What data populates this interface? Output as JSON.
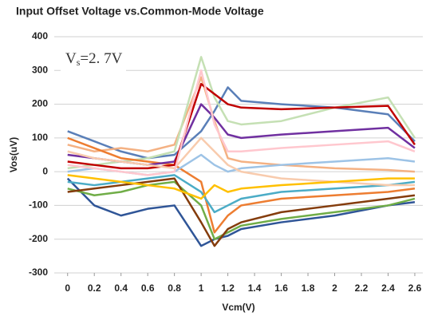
{
  "chart_data": {
    "type": "line",
    "title": "Input Offset Voltage vs.Common-Mode Voltage",
    "x_label": "Vcm(V)",
    "y_label": "Vos(uV)",
    "annotation": {
      "main": "V",
      "sub": "s",
      "rest": "=2. 7V"
    },
    "x": [
      0,
      0.2,
      0.4,
      0.6,
      0.8,
      1.0,
      1.1,
      1.2,
      1.3,
      1.6,
      2.0,
      2.4,
      2.6
    ],
    "xlim": [
      -0.1,
      2.66
    ],
    "xticks": [
      0,
      0.2,
      0.4,
      0.6,
      0.8,
      1,
      1.2,
      1.4,
      1.6,
      1.8,
      2,
      2.2,
      2.4,
      2.6
    ],
    "ylim": [
      -300,
      400
    ],
    "yticks": [
      -300,
      -200,
      -100,
      0,
      100,
      200,
      300,
      400
    ],
    "grid": true,
    "series": [
      {
        "color": "#5a7fb8",
        "values": [
          120,
          90,
          60,
          40,
          50,
          120,
          180,
          250,
          210,
          200,
          190,
          170,
          90
        ]
      },
      {
        "color": "#f4b183",
        "values": [
          80,
          60,
          70,
          60,
          80,
          280,
          150,
          40,
          30,
          20,
          10,
          5,
          0
        ]
      },
      {
        "color": "#2f5597",
        "values": [
          -20,
          -100,
          -130,
          -110,
          -100,
          -220,
          -200,
          -190,
          -170,
          -150,
          -130,
          -100,
          -90
        ]
      },
      {
        "color": "#c5e0b4",
        "values": [
          10,
          20,
          30,
          40,
          60,
          340,
          220,
          150,
          140,
          150,
          190,
          220,
          100
        ]
      },
      {
        "color": "#70ad47",
        "values": [
          -50,
          -70,
          -60,
          -40,
          -30,
          -100,
          -200,
          -180,
          -160,
          -140,
          -120,
          -100,
          -80
        ]
      },
      {
        "color": "#ed7d31",
        "values": [
          100,
          70,
          40,
          30,
          20,
          -30,
          -180,
          -130,
          -100,
          -80,
          -70,
          -60,
          -50
        ]
      },
      {
        "color": "#7030a0",
        "values": [
          50,
          40,
          30,
          20,
          30,
          200,
          160,
          110,
          100,
          110,
          120,
          130,
          70
        ]
      },
      {
        "color": "#9dc3e6",
        "values": [
          0,
          10,
          0,
          -10,
          0,
          50,
          20,
          0,
          10,
          20,
          30,
          40,
          30
        ]
      },
      {
        "color": "#c00000",
        "values": [
          30,
          20,
          10,
          10,
          20,
          260,
          230,
          200,
          190,
          185,
          190,
          195,
          80
        ]
      },
      {
        "color": "#4bacc6",
        "values": [
          -30,
          -40,
          -30,
          -20,
          -10,
          -60,
          -120,
          -100,
          -80,
          -60,
          -50,
          -40,
          -30
        ]
      },
      {
        "color": "#f8cbad",
        "values": [
          60,
          40,
          30,
          20,
          10,
          100,
          60,
          20,
          0,
          -20,
          -30,
          -40,
          -40
        ]
      },
      {
        "color": "#843c0c",
        "values": [
          -60,
          -50,
          -40,
          -30,
          -20,
          -150,
          -220,
          -170,
          -150,
          -120,
          -100,
          -80,
          -70
        ]
      },
      {
        "color": "#ffc7ce",
        "values": [
          20,
          10,
          0,
          -10,
          0,
          300,
          140,
          60,
          60,
          70,
          80,
          90,
          60
        ]
      },
      {
        "color": "#ffc000",
        "values": [
          -10,
          -20,
          -30,
          -40,
          -50,
          -80,
          -40,
          -60,
          -50,
          -40,
          -30,
          -20,
          -20
        ]
      }
    ]
  }
}
